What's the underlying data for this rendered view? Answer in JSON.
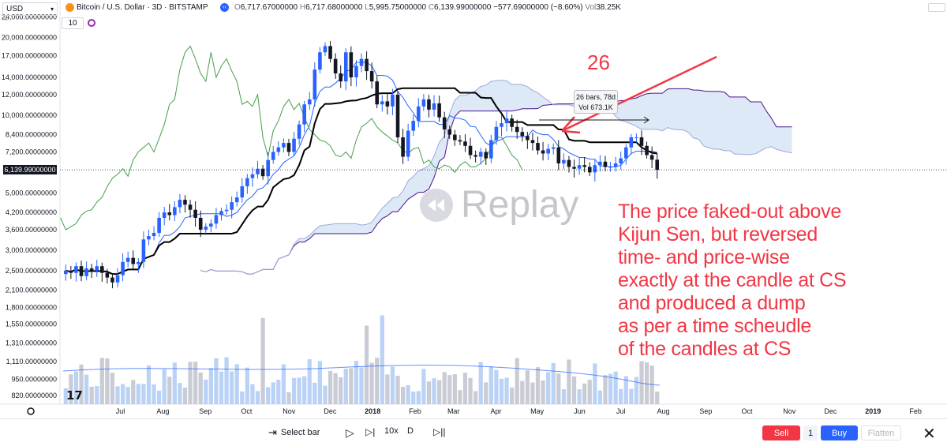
{
  "header": {
    "currency": "USD",
    "symbol_title": "Bitcoin / U.S. Dollar · 3D · BITSTAMP",
    "ohlc": {
      "open_label": "O",
      "open": "6,717.67000000",
      "high_label": "H",
      "high": "6,717.68000000",
      "low_label": "L",
      "low": "5,995.75000000",
      "close_label": "C",
      "close": "6,139.99000000",
      "change": "−577.69000000 (−8.60%)",
      "vol_label": "Vol",
      "vol": "38.25K"
    },
    "indicator_value": "10"
  },
  "colors": {
    "up_candle": "#2962ff",
    "down_candle": "#131722",
    "kijun": "#000000",
    "tenkan": "#2962ff",
    "chikou": "#43a047",
    "span_b": "#4a148c",
    "cloud_bull": "#d6e4f5",
    "cloud_bear": "#e4e5ea",
    "volume": "#c3c6cf",
    "volume_up": "#b3cdf4",
    "annotation": "#f23645"
  },
  "chart_data": {
    "type": "candlestick",
    "title": "Bitcoin / U.S. Dollar · 3D · BITSTAMP",
    "y_scale": "log",
    "y_ticks": [
      "24,000.00000000",
      "20,000.00000000",
      "17,000.00000000",
      "14,000.00000000",
      "12,000.00000000",
      "10,000.00000000",
      "8,400.00000000",
      "7,200.00000000",
      "5,000.00000000",
      "4,200.00000000",
      "3,600.00000000",
      "3,000.00000000",
      "2,500.00000000",
      "2,100.00000000",
      "1,800.00000000",
      "1,550.00000000",
      "1,310.00000000",
      "1,110.00000000",
      "950.00000000",
      "820.00000000"
    ],
    "y_tick_values": [
      24000,
      20000,
      17000,
      14000,
      12000,
      10000,
      8400,
      7200,
      5000,
      4200,
      3600,
      3000,
      2500,
      2100,
      1800,
      1550,
      1310,
      1110,
      950,
      820
    ],
    "current_price_label": "6,139.99000000",
    "current_price": 6139.99,
    "x_ticks": [
      "Jul",
      "Aug",
      "Sep",
      "Oct",
      "Nov",
      "Dec",
      "2018",
      "Feb",
      "Mar",
      "Apr",
      "May",
      "Jun",
      "Jul",
      "Aug",
      "Sep",
      "Oct",
      "Nov",
      "Dec",
      "2019",
      "Feb"
    ],
    "x_tick_dates": [
      "2017-07-01",
      "2017-08-01",
      "2017-09-01",
      "2017-10-01",
      "2017-11-01",
      "2017-12-01",
      "2018-01-01",
      "2018-02-01",
      "2018-03-01",
      "2018-04-01",
      "2018-05-01",
      "2018-06-01",
      "2018-07-01",
      "2018-08-01",
      "2018-09-01",
      "2018-10-01",
      "2018-11-01",
      "2018-12-01",
      "2019-01-01",
      "2019-02-01"
    ],
    "price_series_closes": [
      2500,
      2450,
      2600,
      2380,
      2550,
      2500,
      2600,
      2450,
      2350,
      2250,
      2400,
      2700,
      2800,
      2650,
      2700,
      3300,
      3400,
      3500,
      4000,
      4200,
      4100,
      4400,
      4700,
      4500,
      4300,
      4000,
      3600,
      3700,
      3800,
      4100,
      4250,
      4300,
      4600,
      4800,
      5300,
      5700,
      5900,
      6200,
      5800,
      6700,
      7200,
      7500,
      7800,
      7200,
      8100,
      9200,
      11000,
      11500,
      15000,
      17500,
      18500,
      16500,
      14500,
      13500,
      17500,
      14000,
      15500,
      16500,
      14800,
      13500,
      11000,
      11300,
      10800,
      12000,
      8200,
      6900,
      8700,
      9500,
      10800,
      11500,
      10500,
      11100,
      9800,
      8800,
      8400,
      8000,
      7900,
      7600,
      7000,
      6900,
      7200,
      6800,
      8000,
      9000,
      9300,
      9700,
      9000,
      8600,
      8300,
      8000,
      7800,
      7300,
      7100,
      7400,
      7500,
      6500,
      6700,
      6300,
      6200,
      6400,
      6300,
      6000,
      6400,
      6600,
      6300,
      6300,
      6500,
      6800,
      7500,
      8200,
      8200,
      7600,
      7000,
      6718,
      6140
    ],
    "annotation_text": "26",
    "tooltip": {
      "line1": "26 bars, 78d",
      "line2": "Vol 673.1K"
    }
  },
  "annotation": {
    "lines": [
      "The price faked-out above",
      "Kijun Sen, but reversed",
      "time- and price-wise",
      "exactly at the candle at CS",
      "and produced a dump",
      "as per a time scheudle",
      "of the candles at CS"
    ]
  },
  "replay_label": "Replay",
  "bottom": {
    "select_bar": "Select bar",
    "speed": "10x",
    "interval": "D",
    "sell_label": "Sell",
    "qty": "1",
    "buy_label": "Buy",
    "flatten_label": "Flatten"
  }
}
